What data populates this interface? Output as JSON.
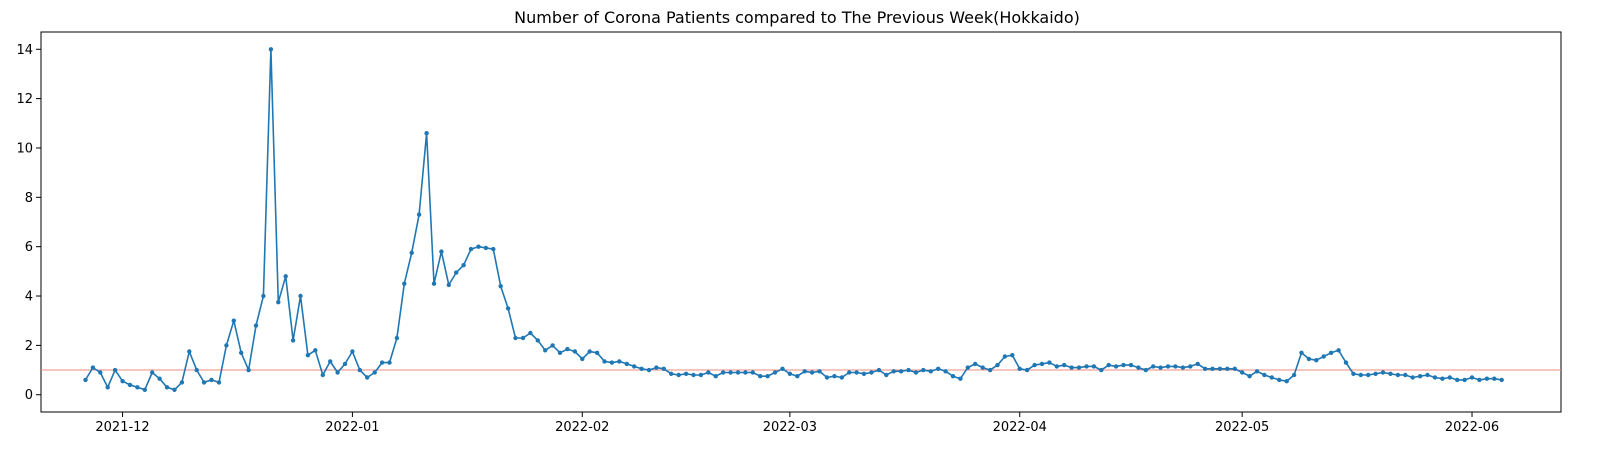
{
  "chart_data": {
    "type": "line",
    "title": "Number of Corona Patients compared to The Previous Week(Hokkaido)",
    "xlabel": "",
    "ylabel": "",
    "x_start": "2021-11-26",
    "ylim": [
      -0.7,
      14.7
    ],
    "xlim": [
      "2021-11-20",
      "2022-06-13"
    ],
    "yticks": [
      0,
      2,
      4,
      6,
      8,
      10,
      12,
      14
    ],
    "xticks": [
      "2021-12",
      "2022-01",
      "2022-02",
      "2022-03",
      "2022-04",
      "2022-05",
      "2022-06"
    ],
    "grid": false,
    "series": [
      {
        "name": "",
        "color": "#1f77b4",
        "values": [
          0.6,
          1.1,
          0.9,
          0.3,
          1.0,
          0.55,
          0.4,
          0.3,
          0.2,
          0.9,
          0.65,
          0.3,
          0.2,
          0.5,
          1.75,
          1.0,
          0.5,
          0.6,
          0.5,
          2.0,
          3.0,
          1.7,
          1.0,
          2.8,
          4.0,
          14.0,
          3.75,
          4.8,
          2.2,
          4.0,
          1.6,
          1.8,
          0.8,
          1.35,
          0.9,
          1.25,
          1.75,
          1.0,
          0.7,
          0.9,
          1.3,
          1.3,
          2.3,
          4.5,
          5.75,
          7.3,
          10.6,
          4.5,
          5.8,
          4.45,
          4.95,
          5.25,
          5.9,
          6.0,
          5.95,
          5.9,
          4.4,
          3.5,
          2.3,
          2.3,
          2.5,
          2.2,
          1.8,
          2.0,
          1.7,
          1.85,
          1.75,
          1.45,
          1.75,
          1.7,
          1.35,
          1.3,
          1.35,
          1.25,
          1.15,
          1.05,
          1.0,
          1.1,
          1.05,
          0.85,
          0.8,
          0.85,
          0.8,
          0.8,
          0.9,
          0.75,
          0.9,
          0.9,
          0.9,
          0.9,
          0.9,
          0.75,
          0.75,
          0.9,
          1.05,
          0.85,
          0.75,
          0.95,
          0.9,
          0.95,
          0.7,
          0.75,
          0.7,
          0.9,
          0.9,
          0.85,
          0.9,
          1.0,
          0.8,
          0.95,
          0.95,
          1.0,
          0.9,
          1.0,
          0.95,
          1.05,
          0.95,
          0.75,
          0.65,
          1.1,
          1.25,
          1.1,
          1.0,
          1.2,
          1.55,
          1.6,
          1.05,
          1.0,
          1.2,
          1.25,
          1.3,
          1.15,
          1.2,
          1.1,
          1.1,
          1.15,
          1.15,
          1.0,
          1.2,
          1.15,
          1.2,
          1.2,
          1.1,
          1.0,
          1.15,
          1.1,
          1.15,
          1.15,
          1.1,
          1.15,
          1.25,
          1.05,
          1.05,
          1.05,
          1.05,
          1.05,
          0.9,
          0.75,
          0.95,
          0.8,
          0.7,
          0.6,
          0.55,
          0.8,
          1.7,
          1.45,
          1.4,
          1.55,
          1.7,
          1.8,
          1.3,
          0.85,
          0.8,
          0.8,
          0.85,
          0.9,
          0.85,
          0.8,
          0.8,
          0.7,
          0.75,
          0.8,
          0.7,
          0.65,
          0.7,
          0.6,
          0.6,
          0.7,
          0.6,
          0.65,
          0.65,
          0.6
        ]
      }
    ],
    "reference_line": {
      "y": 1,
      "color": "#ef8a80"
    }
  }
}
